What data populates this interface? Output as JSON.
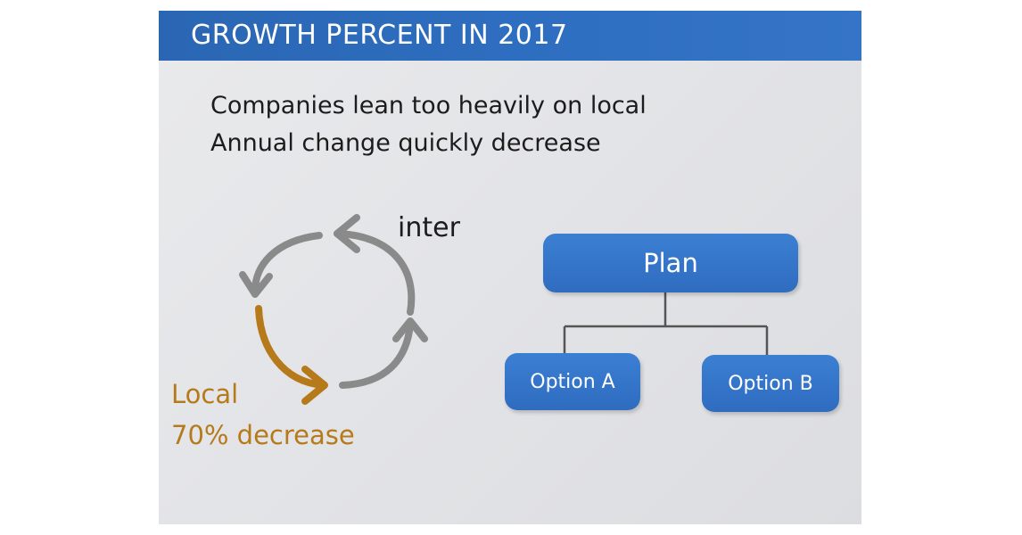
{
  "header": {
    "title": "GROWTH PERCENT IN 2017"
  },
  "intro": {
    "line1": "Companies lean too heavily on local",
    "line2": "Annual change quickly decrease"
  },
  "cycle": {
    "label_top": "inter",
    "label_local": "Local",
    "label_decrease": "70% decrease",
    "colors": {
      "grey_arrow": "#8a8a8a",
      "orange_arrow": "#b67a1a"
    }
  },
  "tree": {
    "root": "Plan",
    "children": [
      "Option A",
      "Option B"
    ],
    "box_color": "#2f6cc0"
  }
}
